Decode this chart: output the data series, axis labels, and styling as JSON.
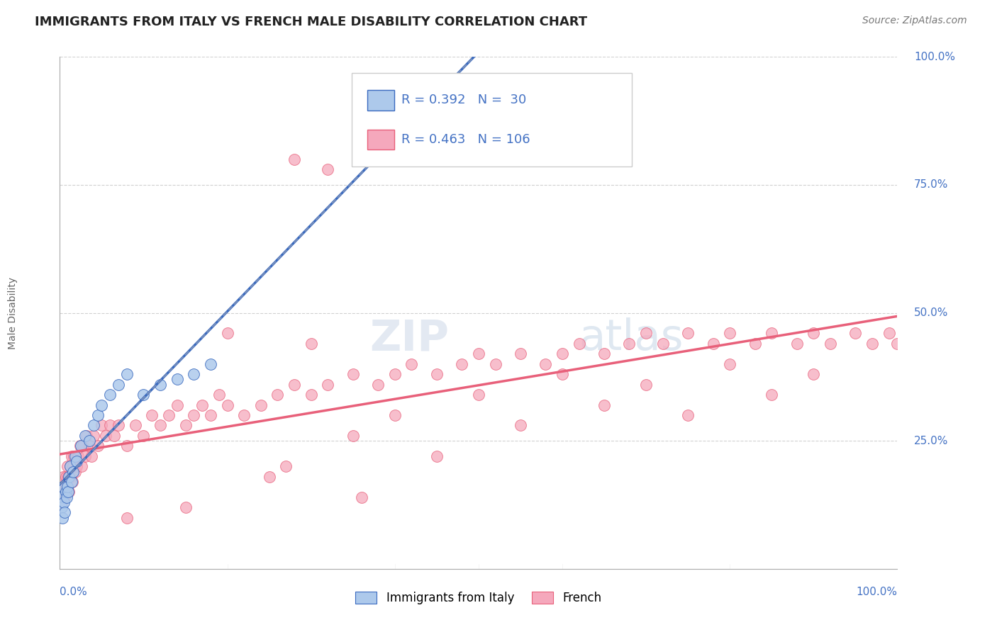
{
  "title": "IMMIGRANTS FROM ITALY VS FRENCH MALE DISABILITY CORRELATION CHART",
  "source": "Source: ZipAtlas.com",
  "ylabel": "Male Disability",
  "legend_italy_R": "0.392",
  "legend_italy_N": "30",
  "legend_french_R": "0.463",
  "legend_french_N": "106",
  "italy_color": "#adc9eb",
  "french_color": "#f5a8bc",
  "italy_line_color": "#3a6abf",
  "french_line_color": "#e8607a",
  "background_color": "#ffffff",
  "grid_color": "#cccccc",
  "title_color": "#222222",
  "axis_label_color": "#4472c4",
  "watermark_color": "#ccd8e8",
  "italy_x": [
    0.1,
    0.2,
    0.3,
    0.4,
    0.5,
    0.6,
    0.7,
    0.8,
    0.9,
    1.0,
    1.1,
    1.2,
    1.4,
    1.6,
    1.8,
    2.0,
    2.5,
    3.0,
    3.5,
    4.0,
    4.5,
    5.0,
    6.0,
    7.0,
    8.0,
    10.0,
    12.0,
    14.0,
    16.0,
    18.0
  ],
  "italy_y": [
    14.0,
    12.0,
    10.0,
    16.0,
    13.0,
    11.0,
    15.0,
    14.0,
    16.0,
    15.0,
    18.0,
    20.0,
    17.0,
    19.0,
    22.0,
    21.0,
    24.0,
    26.0,
    25.0,
    28.0,
    30.0,
    32.0,
    34.0,
    36.0,
    38.0,
    34.0,
    36.0,
    37.0,
    38.0,
    40.0
  ],
  "french_x": [
    0.1,
    0.15,
    0.2,
    0.25,
    0.3,
    0.35,
    0.4,
    0.5,
    0.6,
    0.7,
    0.8,
    0.9,
    1.0,
    1.1,
    1.2,
    1.3,
    1.4,
    1.5,
    1.6,
    1.7,
    1.8,
    1.9,
    2.0,
    2.2,
    2.4,
    2.6,
    2.8,
    3.0,
    3.2,
    3.5,
    3.8,
    4.0,
    4.5,
    5.0,
    5.5,
    6.0,
    6.5,
    7.0,
    8.0,
    9.0,
    10.0,
    11.0,
    12.0,
    13.0,
    14.0,
    15.0,
    16.0,
    17.0,
    18.0,
    19.0,
    20.0,
    22.0,
    24.0,
    26.0,
    28.0,
    30.0,
    32.0,
    35.0,
    38.0,
    40.0,
    42.0,
    45.0,
    48.0,
    50.0,
    52.0,
    55.0,
    58.0,
    60.0,
    62.0,
    65.0,
    68.0,
    70.0,
    72.0,
    75.0,
    78.0,
    80.0,
    83.0,
    85.0,
    88.0,
    90.0,
    92.0,
    95.0,
    97.0,
    99.0,
    100.0,
    25.0,
    27.0,
    30.0,
    35.0,
    40.0,
    45.0,
    50.0,
    55.0,
    60.0,
    65.0,
    70.0,
    75.0,
    80.0,
    85.0,
    90.0,
    28.0,
    32.0,
    36.0,
    20.0,
    15.0,
    8.0
  ],
  "french_y": [
    15.0,
    14.0,
    16.0,
    13.0,
    17.0,
    15.0,
    18.0,
    16.0,
    14.0,
    18.0,
    16.0,
    20.0,
    18.0,
    15.0,
    20.0,
    18.0,
    22.0,
    17.0,
    20.0,
    22.0,
    19.0,
    22.0,
    20.0,
    22.0,
    24.0,
    20.0,
    24.0,
    22.0,
    26.0,
    24.0,
    22.0,
    26.0,
    24.0,
    28.0,
    26.0,
    28.0,
    26.0,
    28.0,
    24.0,
    28.0,
    26.0,
    30.0,
    28.0,
    30.0,
    32.0,
    28.0,
    30.0,
    32.0,
    30.0,
    34.0,
    32.0,
    30.0,
    32.0,
    34.0,
    36.0,
    34.0,
    36.0,
    38.0,
    36.0,
    38.0,
    40.0,
    38.0,
    40.0,
    42.0,
    40.0,
    42.0,
    40.0,
    42.0,
    44.0,
    42.0,
    44.0,
    46.0,
    44.0,
    46.0,
    44.0,
    46.0,
    44.0,
    46.0,
    44.0,
    46.0,
    44.0,
    46.0,
    44.0,
    46.0,
    44.0,
    18.0,
    20.0,
    44.0,
    26.0,
    30.0,
    22.0,
    34.0,
    28.0,
    38.0,
    32.0,
    36.0,
    30.0,
    40.0,
    34.0,
    38.0,
    80.0,
    78.0,
    14.0,
    46.0,
    12.0,
    10.0
  ]
}
